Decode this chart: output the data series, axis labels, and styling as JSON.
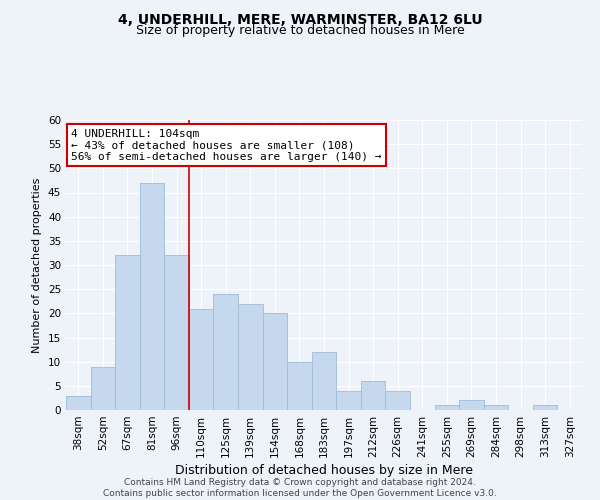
{
  "title": "4, UNDERHILL, MERE, WARMINSTER, BA12 6LU",
  "subtitle": "Size of property relative to detached houses in Mere",
  "xlabel": "Distribution of detached houses by size in Mere",
  "ylabel": "Number of detached properties",
  "categories": [
    "38sqm",
    "52sqm",
    "67sqm",
    "81sqm",
    "96sqm",
    "110sqm",
    "125sqm",
    "139sqm",
    "154sqm",
    "168sqm",
    "183sqm",
    "197sqm",
    "212sqm",
    "226sqm",
    "241sqm",
    "255sqm",
    "269sqm",
    "284sqm",
    "298sqm",
    "313sqm",
    "327sqm"
  ],
  "values": [
    3,
    9,
    32,
    47,
    32,
    21,
    24,
    22,
    20,
    10,
    12,
    4,
    6,
    4,
    0,
    1,
    2,
    1,
    0,
    1,
    0
  ],
  "bar_color": "#c5d8ed",
  "bar_edge_color": "#a0bcd8",
  "vline_color": "#cc0000",
  "vline_index": 4.5,
  "annotation_text": "4 UNDERHILL: 104sqm\n← 43% of detached houses are smaller (108)\n56% of semi-detached houses are larger (140) →",
  "annotation_box_color": "#ffffff",
  "annotation_box_edge": "#cc0000",
  "ylim": [
    0,
    60
  ],
  "yticks": [
    0,
    5,
    10,
    15,
    20,
    25,
    30,
    35,
    40,
    45,
    50,
    55,
    60
  ],
  "footer": "Contains HM Land Registry data © Crown copyright and database right 2024.\nContains public sector information licensed under the Open Government Licence v3.0.",
  "bg_color": "#eef2f9",
  "grid_color": "#ffffff",
  "title_fontsize": 10,
  "subtitle_fontsize": 9,
  "xlabel_fontsize": 9,
  "ylabel_fontsize": 8,
  "tick_fontsize": 7.5,
  "annotation_fontsize": 8,
  "footer_fontsize": 6.5
}
